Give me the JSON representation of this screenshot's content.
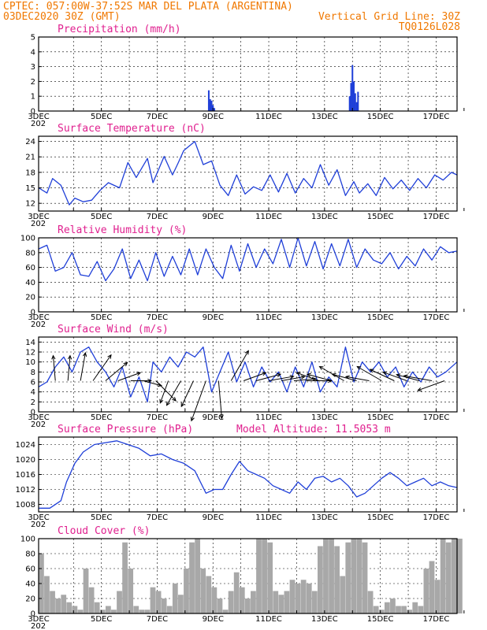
{
  "header": {
    "line1": "CPTEC:   057:00W-37:52S  MAR DEL PLATA (ARGENTINA)",
    "line2_left": "03DEC2020 30Z (GMT)",
    "line2_right": "Vertical Grid Line: 30Z",
    "line3_right": "TQ0126L028"
  },
  "colors": {
    "header": "#f07800",
    "panel_title": "#e0208f",
    "line": "#1f3fd8",
    "cloud": "#a8a8a8"
  },
  "x_tick_labels": [
    "3DEC",
    "5DEC",
    "7DEC",
    "9DEC",
    "11DEC",
    "13DEC",
    "15DEC",
    "17DEC"
  ],
  "x_tick_fragment": "202",
  "chart_data": [
    {
      "type": "bar",
      "title": "Precipitation (mm/h)",
      "ylim": [
        0,
        5
      ],
      "yticks": [
        "0",
        "1",
        "2",
        "3",
        "4",
        "5"
      ],
      "x_days": [
        9.1,
        9.15,
        9.2,
        9.25,
        9.3,
        14.15,
        14.2,
        14.25,
        14.3,
        14.35,
        14.4,
        14.45
      ],
      "values": [
        1.4,
        0.8,
        0.7,
        0.4,
        0.2,
        1.0,
        1.9,
        3.1,
        2.0,
        1.2,
        0.6,
        1.3
      ]
    },
    {
      "type": "line",
      "title": "Surface Temperature (nC)",
      "ylim": [
        10.5,
        25
      ],
      "yticks": [
        "12",
        "15",
        "18",
        "21",
        "24"
      ],
      "x_days": [
        3.0,
        3.3,
        3.5,
        3.8,
        4.1,
        4.3,
        4.6,
        4.9,
        5.2,
        5.5,
        5.9,
        6.2,
        6.5,
        6.9,
        7.1,
        7.5,
        7.8,
        8.0,
        8.2,
        8.6,
        8.9,
        9.2,
        9.5,
        9.8,
        10.1,
        10.4,
        10.7,
        11.0,
        11.3,
        11.6,
        11.9,
        12.2,
        12.5,
        12.8,
        13.1,
        13.4,
        13.7,
        14.0,
        14.3,
        14.5,
        14.8,
        15.1,
        15.4,
        15.7,
        16.0,
        16.3,
        16.6,
        16.9,
        17.2,
        17.5,
        17.8,
        18.0
      ],
      "values": [
        15,
        14,
        16.8,
        15.5,
        11.7,
        13,
        12.3,
        12.6,
        14.5,
        16,
        15,
        19.9,
        17,
        20.7,
        16,
        21.1,
        17.5,
        19.8,
        22.2,
        24,
        19.5,
        20.2,
        15.5,
        13.5,
        17.5,
        13.8,
        15.2,
        14.5,
        17.5,
        14.2,
        17.8,
        14,
        16.8,
        15,
        19.5,
        15.5,
        18.5,
        13.5,
        16.2,
        14,
        15.8,
        13.5,
        17,
        14.8,
        16.5,
        14.5,
        16.8,
        15,
        17.5,
        16.5,
        18,
        17.5
      ]
    },
    {
      "type": "line",
      "title": "Relative Humidity (%)",
      "ylim": [
        0,
        100
      ],
      "yticks": [
        "0",
        "20",
        "40",
        "60",
        "80",
        "100"
      ],
      "x_days": [
        3.0,
        3.3,
        3.6,
        3.9,
        4.2,
        4.5,
        4.8,
        5.1,
        5.4,
        5.7,
        6.0,
        6.3,
        6.6,
        6.9,
        7.2,
        7.5,
        7.8,
        8.1,
        8.4,
        8.7,
        9.0,
        9.3,
        9.6,
        9.9,
        10.2,
        10.5,
        10.8,
        11.1,
        11.4,
        11.7,
        12.0,
        12.3,
        12.6,
        12.9,
        13.2,
        13.5,
        13.8,
        14.1,
        14.4,
        14.7,
        15.0,
        15.3,
        15.6,
        15.9,
        16.2,
        16.5,
        16.8,
        17.1,
        17.4,
        17.7,
        18.0
      ],
      "values": [
        85,
        90,
        55,
        60,
        80,
        50,
        48,
        68,
        42,
        58,
        85,
        45,
        70,
        42,
        80,
        48,
        75,
        50,
        85,
        50,
        85,
        60,
        45,
        90,
        55,
        92,
        60,
        85,
        65,
        98,
        60,
        100,
        62,
        95,
        58,
        92,
        62,
        98,
        60,
        85,
        70,
        65,
        80,
        58,
        75,
        62,
        85,
        70,
        88,
        80,
        82
      ]
    },
    {
      "type": "line",
      "title": "Surface Wind (m/s)",
      "ylim": [
        0,
        15
      ],
      "yticks": [
        "0",
        "2",
        "4",
        "6",
        "8",
        "10",
        "12",
        "14"
      ],
      "x_days": [
        3.0,
        3.3,
        3.6,
        3.9,
        4.2,
        4.5,
        4.8,
        5.1,
        5.4,
        5.7,
        6.0,
        6.3,
        6.6,
        6.9,
        7.1,
        7.4,
        7.7,
        8.0,
        8.3,
        8.6,
        8.9,
        9.2,
        9.5,
        9.8,
        10.1,
        10.4,
        10.7,
        11.0,
        11.3,
        11.6,
        11.9,
        12.2,
        12.5,
        12.8,
        13.1,
        13.4,
        13.7,
        14.0,
        14.3,
        14.6,
        14.9,
        15.2,
        15.5,
        15.8,
        16.1,
        16.4,
        16.7,
        17.0,
        17.3,
        17.6,
        18.0
      ],
      "values": [
        5,
        6,
        9,
        11,
        8,
        12,
        13,
        10,
        8,
        5,
        9,
        3,
        7,
        2,
        10,
        8,
        11,
        9,
        12,
        11,
        13,
        4,
        8,
        12,
        6,
        10,
        5,
        9,
        6,
        8,
        4,
        9,
        5,
        10,
        4,
        7,
        5,
        13,
        6,
        10,
        8,
        10,
        7,
        9,
        5,
        8,
        6,
        9,
        7,
        8,
        10
      ],
      "arrow_angles_deg": [
        -95,
        -85,
        -80,
        -55,
        -40,
        -20,
        0,
        15,
        45,
        110,
        120,
        115,
        110,
        85,
        -60,
        -20,
        -15,
        -10,
        -10,
        -5,
        0,
        -160,
        -165,
        -150,
        -165,
        -170,
        -150,
        -155,
        -160,
        -165,
        -170,
        -200
      ],
      "arrow_lengths": [
        32,
        32,
        36,
        40,
        36,
        30,
        26,
        24,
        36,
        30,
        36,
        36,
        54,
        48,
        44,
        30,
        32,
        32,
        30,
        28,
        32,
        30,
        32,
        36,
        32,
        30,
        36,
        34,
        32,
        30,
        36,
        36
      ]
    },
    {
      "type": "line",
      "title": "Surface Pressure (hPa)",
      "annotation": "Model Altitude: 11.5053 m",
      "ylim": [
        1006,
        1026
      ],
      "yticks": [
        "1008",
        "1012",
        "1016",
        "1020",
        "1024"
      ],
      "x_days": [
        3.0,
        3.4,
        3.8,
        4.0,
        4.3,
        4.6,
        5.0,
        5.4,
        5.8,
        6.2,
        6.6,
        7.0,
        7.4,
        7.8,
        8.2,
        8.6,
        9.0,
        9.3,
        9.6,
        9.9,
        10.2,
        10.5,
        10.8,
        11.1,
        11.4,
        11.7,
        12.0,
        12.3,
        12.6,
        12.9,
        13.2,
        13.5,
        13.8,
        14.1,
        14.4,
        14.7,
        15.0,
        15.3,
        15.6,
        15.9,
        16.2,
        16.5,
        16.8,
        17.1,
        17.4,
        17.7,
        18.0
      ],
      "values": [
        1007,
        1007,
        1009,
        1014,
        1019,
        1022,
        1024,
        1024.5,
        1025,
        1024,
        1023,
        1021,
        1021.5,
        1020,
        1019,
        1017,
        1011,
        1012,
        1012,
        1016,
        1019.5,
        1017,
        1016,
        1015,
        1013,
        1012,
        1011,
        1014,
        1012,
        1015,
        1015.5,
        1014,
        1015,
        1013,
        1010,
        1011,
        1013,
        1015,
        1016.5,
        1015,
        1013,
        1014,
        1015,
        1013,
        1014,
        1013,
        1012.5
      ]
    },
    {
      "type": "area",
      "title": "Cloud Cover (%)",
      "ylim": [
        0,
        100
      ],
      "yticks": [
        "0",
        "20",
        "40",
        "60",
        "80",
        "100"
      ],
      "x_days": [
        3.0,
        3.2,
        3.4,
        3.6,
        3.8,
        4.0,
        4.2,
        4.4,
        4.6,
        4.8,
        5.0,
        5.2,
        5.4,
        5.6,
        5.8,
        6.0,
        6.2,
        6.4,
        6.6,
        6.8,
        7.0,
        7.2,
        7.4,
        7.6,
        7.8,
        8.0,
        8.2,
        8.4,
        8.6,
        8.8,
        9.0,
        9.2,
        9.4,
        9.6,
        9.8,
        10.0,
        10.2,
        10.4,
        10.6,
        10.8,
        11.0,
        11.2,
        11.4,
        11.6,
        11.8,
        12.0,
        12.2,
        12.4,
        12.6,
        12.8,
        13.0,
        13.2,
        13.4,
        13.6,
        13.8,
        14.0,
        14.2,
        14.4,
        14.6,
        14.8,
        15.0,
        15.2,
        15.4,
        15.6,
        15.8,
        16.0,
        16.2,
        16.4,
        16.6,
        16.8,
        17.0,
        17.2,
        17.4,
        17.6,
        17.8,
        18.0
      ],
      "values": [
        80,
        50,
        30,
        20,
        25,
        15,
        10,
        5,
        60,
        35,
        15,
        5,
        10,
        5,
        30,
        95,
        60,
        10,
        5,
        5,
        35,
        30,
        20,
        10,
        40,
        25,
        60,
        95,
        100,
        60,
        50,
        35,
        20,
        5,
        30,
        55,
        35,
        20,
        30,
        100,
        100,
        95,
        30,
        25,
        30,
        45,
        40,
        45,
        40,
        30,
        90,
        100,
        100,
        90,
        50,
        95,
        100,
        100,
        95,
        30,
        10,
        5,
        15,
        20,
        10,
        10,
        5,
        15,
        10,
        60,
        70,
        45,
        100,
        95,
        100,
        100
      ]
    }
  ]
}
